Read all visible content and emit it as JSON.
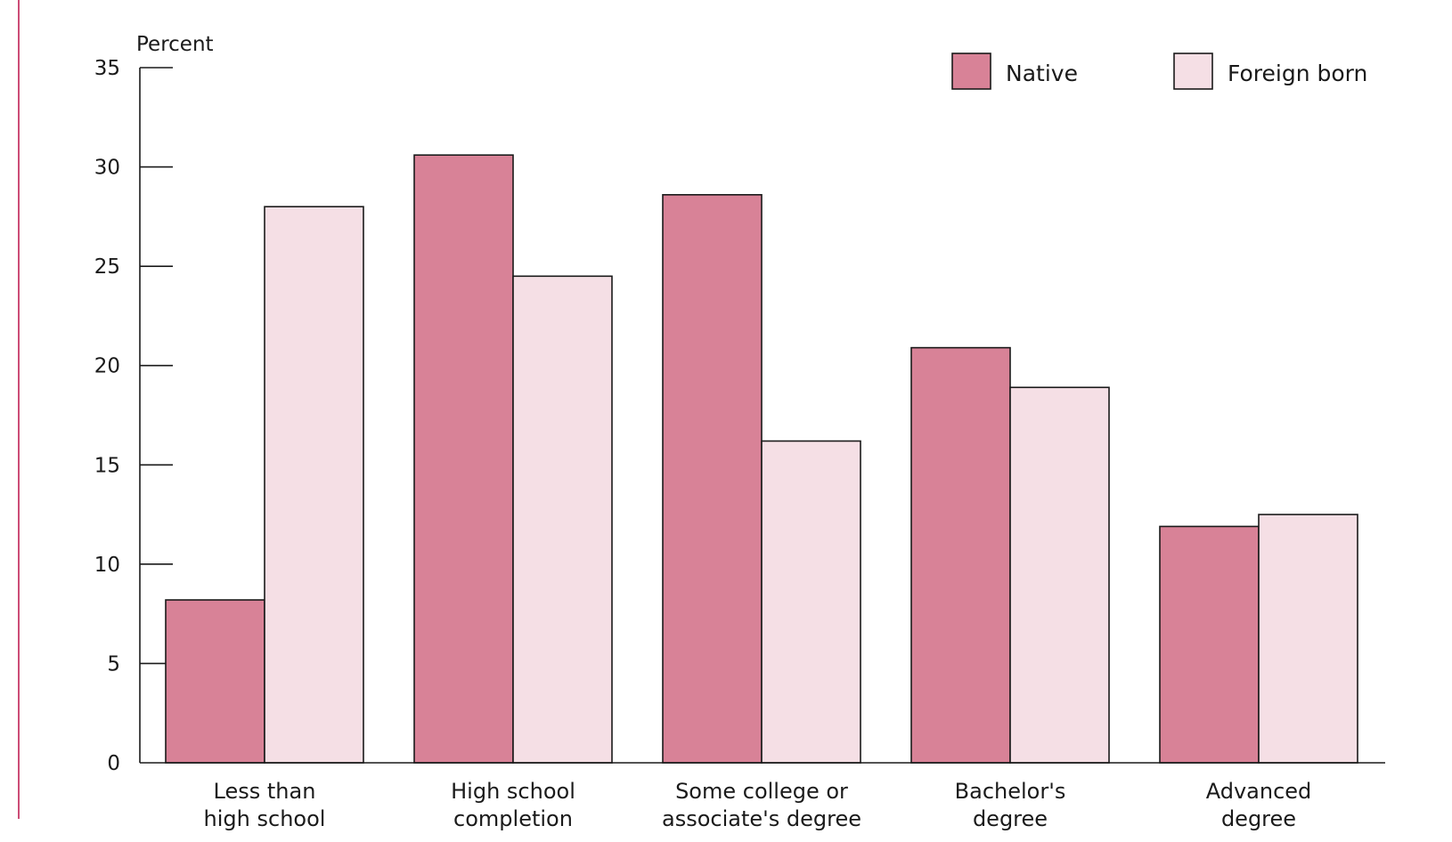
{
  "chart_data": {
    "type": "bar",
    "ylabel": "Percent",
    "ylim": [
      0,
      35
    ],
    "yticks": [
      0,
      5,
      10,
      15,
      20,
      25,
      30,
      35
    ],
    "categories": [
      [
        "Less than",
        "high school"
      ],
      [
        "High school",
        "completion"
      ],
      [
        "Some college or",
        "associate's degree"
      ],
      [
        "Bachelor's",
        "degree"
      ],
      [
        "Advanced",
        "degree"
      ]
    ],
    "series": [
      {
        "name": "Native",
        "color": "#d88297",
        "values": [
          8.2,
          30.6,
          28.6,
          20.9,
          11.9
        ]
      },
      {
        "name": "Foreign born",
        "color": "#f5dfe5",
        "values": [
          28.0,
          24.5,
          16.2,
          18.9,
          12.5
        ]
      }
    ],
    "legend": "top-right",
    "grid": false
  },
  "colors": {
    "page_border": "#cc4d77",
    "bar_stroke": "#1a1a1a"
  }
}
